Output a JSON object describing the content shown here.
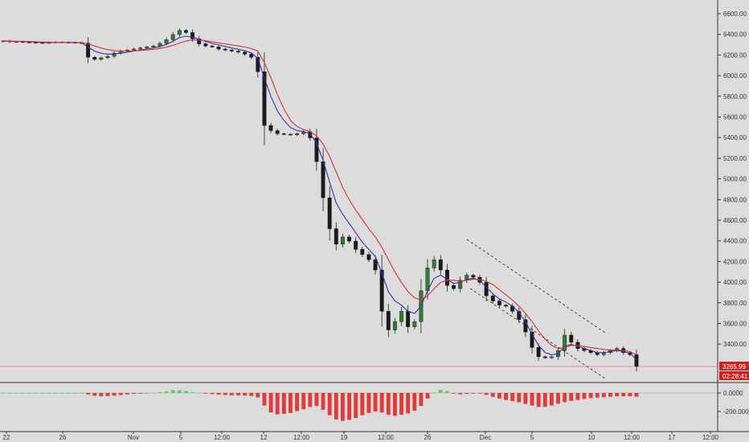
{
  "chart_data": {
    "type": "candlestick",
    "title": "",
    "xlabel": "",
    "ylabel": "",
    "grid": false,
    "colors": {
      "background": "#dcdcdc",
      "up_candle": "#2e7d32",
      "down_candle": "#1a1a1a",
      "ema_fast": "#3333aa",
      "ema_slow": "#e03030",
      "hist_positive": "#56d456",
      "hist_negative": "#e23a3a",
      "last_price_line": "#d83030",
      "tag_bg": "#cc2222"
    },
    "price_axis": {
      "ylim": [
        3000,
        6700
      ],
      "ticks": [
        "6600.00",
        "6400.00",
        "6200.00",
        "6000.00",
        "5800.00",
        "5600.00",
        "5400.00",
        "5200.00",
        "5000.00",
        "4800.00",
        "4600.00",
        "4400.00",
        "4200.00",
        "4000.00",
        "3800.00",
        "3600.00",
        "3400.00"
      ]
    },
    "time_axis": {
      "ticks": [
        "22",
        "26",
        "Nov",
        "5",
        "12:00",
        "12",
        "12:00",
        "19",
        "12:00",
        "26",
        "Dec",
        "5",
        "10",
        "12:00",
        "17",
        "12:00"
      ]
    },
    "last_price": {
      "price": "3265.99",
      "countdown": "02:28:41",
      "value": 3265.99
    },
    "series": [
      {
        "values": [
          6418,
          6410,
          6412,
          6408,
          6405,
          6402,
          6400,
          6403,
          6408,
          6406,
          6404,
          6402,
          6398,
          6260,
          6240,
          6255,
          6270,
          6300,
          6320,
          6330,
          6340,
          6350,
          6360,
          6370,
          6395,
          6430,
          6480,
          6520,
          6500,
          6440,
          6390,
          6370,
          6360,
          6340,
          6330,
          6320,
          6310,
          6290,
          6260,
          6120,
          5600,
          5550,
          5520,
          5515,
          5510,
          5520,
          5540,
          5480,
          5250,
          4900,
          4600,
          4450,
          4520,
          4480,
          4400,
          4350,
          4300,
          4200,
          3800,
          3620,
          3700,
          3800,
          3650,
          3700,
          4000,
          4220,
          4300,
          4200,
          4050,
          4020,
          4100,
          4150,
          4130,
          4080,
          3950,
          3900,
          3860,
          3850,
          3800,
          3720,
          3600,
          3450,
          3360,
          3350,
          3360,
          3420,
          3570,
          3500,
          3440,
          3420,
          3400,
          3380,
          3400,
          3420,
          3440,
          3400,
          3380,
          3266
        ]
      },
      {
        "values": [
          6418,
          6415,
          6414,
          6412,
          6410,
          6407,
          6404,
          6403,
          6404,
          6404,
          6404,
          6403,
          6401,
          6360,
          6320,
          6300,
          6290,
          6293,
          6300,
          6310,
          6320,
          6330,
          6340,
          6350,
          6365,
          6385,
          6415,
          6450,
          6465,
          6455,
          6435,
          6415,
          6395,
          6380,
          6365,
          6350,
          6338,
          6323,
          6303,
          6250,
          6060,
          5880,
          5740,
          5650,
          5580,
          5550,
          5540,
          5520,
          5430,
          5260,
          5050,
          4850,
          4740,
          4650,
          4560,
          4470,
          4400,
          4330,
          4170,
          3990,
          3900,
          3860,
          3800,
          3780,
          3850,
          4000,
          4120,
          4150,
          4110,
          4070,
          4080,
          4110,
          4120,
          4100,
          4030,
          3970,
          3920,
          3890,
          3850,
          3790,
          3700,
          3580,
          3470,
          3400,
          3380,
          3390,
          3460,
          3480,
          3460,
          3440,
          3420,
          3400,
          3400,
          3410,
          3420,
          3410,
          3395,
          3330
        ]
      },
      {
        "values": [
          6420,
          6418,
          6416,
          6415,
          6413,
          6411,
          6409,
          6407,
          6406,
          6405,
          6405,
          6404,
          6403,
          6390,
          6370,
          6350,
          6335,
          6325,
          6320,
          6320,
          6322,
          6326,
          6331,
          6337,
          6346,
          6358,
          6376,
          6398,
          6418,
          6428,
          6428,
          6420,
          6410,
          6400,
          6390,
          6380,
          6370,
          6360,
          6345,
          6320,
          6210,
          6060,
          5900,
          5760,
          5650,
          5590,
          5560,
          5540,
          5500,
          5420,
          5300,
          5150,
          5000,
          4880,
          4780,
          4690,
          4600,
          4520,
          4420,
          4300,
          4180,
          4080,
          3990,
          3930,
          3910,
          3950,
          4020,
          4080,
          4100,
          4100,
          4090,
          4100,
          4110,
          4110,
          4090,
          4060,
          4010,
          3960,
          3910,
          3850,
          3780,
          3700,
          3610,
          3530,
          3470,
          3440,
          3450,
          3470,
          3470,
          3460,
          3450,
          3440,
          3430,
          3425,
          3425,
          3420,
          3410,
          3380
        ]
      }
    ],
    "macd_panel": {
      "ylim": [
        -300,
        80
      ],
      "ticks": [
        "0.0000",
        "-200.0000"
      ],
      "values": [
        2,
        1,
        1,
        0,
        0,
        0,
        0,
        0,
        0,
        0,
        0,
        0,
        0,
        -15,
        -30,
        -35,
        -33,
        -28,
        -22,
        -16,
        -10,
        -5,
        0,
        3,
        8,
        18,
        30,
        30,
        22,
        10,
        2,
        -5,
        -12,
        -18,
        -22,
        -25,
        -25,
        -28,
        -32,
        -48,
        -135,
        -210,
        -230,
        -225,
        -215,
        -195,
        -175,
        -150,
        -140,
        -180,
        -240,
        -285,
        -300,
        -290,
        -270,
        -240,
        -215,
        -200,
        -210,
        -235,
        -245,
        -235,
        -220,
        -190,
        -140,
        -60,
        5,
        35,
        20,
        -5,
        -15,
        -10,
        -5,
        -5,
        -20,
        -40,
        -60,
        -75,
        -88,
        -100,
        -118,
        -135,
        -150,
        -150,
        -135,
        -115,
        -100,
        -85,
        -75,
        -65,
        -55,
        -50,
        -45,
        -40,
        -35,
        -35,
        -35,
        -40
      ]
    }
  }
}
